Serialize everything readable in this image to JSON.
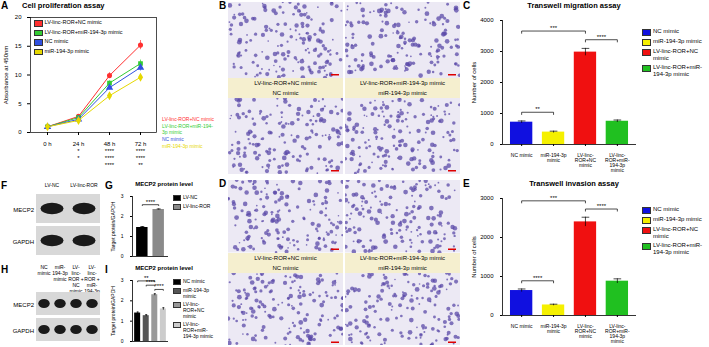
{
  "chart_data": [
    {
      "panel": "A",
      "type": "line",
      "title": "Cell proliferation assay",
      "x": [
        "0 h",
        "24 h",
        "48 h",
        "72 h"
      ],
      "ylabel": "Absorbance at 450nm",
      "ylim": [
        0,
        20
      ],
      "yticks": [
        0,
        5,
        10,
        15,
        20
      ],
      "legend": "top-left",
      "series": [
        {
          "name": "LV-linc-ROR+NC mimic",
          "color": "#ff3030",
          "marker": "circle",
          "line_style": "solid",
          "values": [
            1.0,
            2.8,
            9.9,
            15.2
          ],
          "errors": [
            0.1,
            0.2,
            0.5,
            0.8
          ]
        },
        {
          "name": "LV-linc-ROR+miR-194-3p mimic",
          "color": "#33cc33",
          "marker": "square",
          "line_style": "solid",
          "values": [
            1.0,
            2.6,
            8.6,
            12.0
          ],
          "errors": [
            0.1,
            0.2,
            0.4,
            0.6
          ]
        },
        {
          "name": "NC mimic",
          "color": "#3050e0",
          "marker": "triangle",
          "line_style": "solid",
          "values": [
            1.0,
            2.3,
            7.8,
            11.3
          ],
          "errors": [
            0.1,
            0.2,
            0.4,
            0.6
          ]
        },
        {
          "name": "miR-194-3p mimic",
          "color": "#e6d800",
          "marker": "diamond",
          "line_style": "solid",
          "values": [
            1.0,
            2.1,
            6.4,
            9.6
          ],
          "errors": [
            0.1,
            0.2,
            0.4,
            0.5
          ]
        }
      ],
      "significance": [
        [
          null,
          "*",
          "****",
          "****"
        ],
        [
          null,
          "*",
          "****",
          "****"
        ],
        [
          null,
          null,
          "****",
          "**"
        ]
      ]
    },
    {
      "panel": "C",
      "type": "bar",
      "title": "Transwell migration assay",
      "categories": [
        "NC mimic",
        "miR-194-3p mimic",
        "LV-linc-ROR+NC mimic",
        "LV-linc-ROR+miR-194-3p mimic"
      ],
      "values": [
        720,
        400,
        2980,
        750
      ],
      "errors": [
        40,
        30,
        120,
        40
      ],
      "colors": [
        "#1010e0",
        "#f5f000",
        "#f01010",
        "#20c020"
      ],
      "ylabel": "Number of cells",
      "ylim": [
        0,
        4000
      ],
      "yticks": [
        0,
        1000,
        2000,
        3000,
        4000
      ],
      "legend": "right",
      "comparisons": [
        {
          "from": 0,
          "to": 1,
          "text": "**"
        },
        {
          "from": 2,
          "to": 3,
          "text": "****"
        },
        {
          "from": 0,
          "to": 2,
          "text": "***"
        }
      ]
    },
    {
      "panel": "E",
      "type": "bar",
      "title": "Transwell invasion assay",
      "categories": [
        "NC mimic",
        "miR-194-3p mimic",
        "LV-linc-ROR+NC mimic",
        "LV-linc-ROR+miR-194-3p mimic"
      ],
      "values": [
        640,
        270,
        2400,
        880
      ],
      "errors": [
        40,
        20,
        120,
        60
      ],
      "colors": [
        "#1010e0",
        "#f5f000",
        "#f01010",
        "#20c020"
      ],
      "ylabel": "Number of cells",
      "ylim": [
        0,
        3000
      ],
      "yticks": [
        0,
        1000,
        2000,
        3000
      ],
      "legend": "right",
      "comparisons": [
        {
          "from": 0,
          "to": 1,
          "text": "****"
        },
        {
          "from": 2,
          "to": 3,
          "text": "****"
        },
        {
          "from": 0,
          "to": 2,
          "text": "***"
        }
      ]
    },
    {
      "panel": "G",
      "type": "bar",
      "title": "MECP2 protein level",
      "categories": [
        "LV-NC",
        "LV-linc-ROR"
      ],
      "values": [
        1.45,
        2.35
      ],
      "errors": [
        0.05,
        0.03
      ],
      "colors": [
        "#000000",
        "#8a8a8a"
      ],
      "ylabel": "Target protein/GAPDH",
      "ylim": [
        0,
        3
      ],
      "yticks": [
        0,
        1,
        2,
        3
      ],
      "legend": "right",
      "tick_labels": "y",
      "comparisons": [
        {
          "from": 0,
          "to": 1,
          "text": "****"
        }
      ]
    },
    {
      "panel": "I",
      "type": "bar",
      "title": "MECP2 protein level",
      "categories": [
        "NC mimic",
        "miR-194-3p mimic",
        "LV-linc-ROR+NC mimic",
        "LV-linc-ROR+miR-194-3p mimic"
      ],
      "values": [
        1.4,
        1.27,
        2.3,
        1.6
      ],
      "errors": [
        0.05,
        0.05,
        0.05,
        0.06
      ],
      "colors": [
        "#000000",
        "#555555",
        "#999999",
        "#cccccc"
      ],
      "ylabel": "Target protein/GAPDH",
      "ylim": [
        0,
        3
      ],
      "yticks": [
        0,
        1,
        2,
        3
      ],
      "legend": "right",
      "tick_labels": "y",
      "comparisons": [
        {
          "from": 2,
          "to": 3,
          "text": "****"
        },
        {
          "from": 1,
          "to": 2,
          "text": "****"
        },
        {
          "from": 0,
          "to": 2,
          "text": "**"
        }
      ]
    }
  ],
  "images": [
    {
      "panel": "B",
      "labels": [
        "LV-linc-ROR+NC mimic",
        "LV-linc-ROR+miR-194-3p mimic",
        "NC mimic",
        "miR-194-3p mimic"
      ]
    },
    {
      "panel": "D",
      "labels": [
        "LV-linc-ROR+NC mimic",
        "LV-linc-ROR+miR-194-3p mimic",
        "NC mimic",
        "miR-194-3p mimic"
      ]
    }
  ],
  "blots": [
    {
      "panel": "F",
      "rows": [
        "MECP2",
        "GAPDH"
      ],
      "lanes": [
        "LV-NC",
        "LV-linc-ROR"
      ]
    },
    {
      "panel": "H",
      "rows": [
        "MECP2",
        "GAPDH"
      ],
      "lanes": [
        "NC mimic",
        "miR-194-3p mimic",
        "LV-linc-ROR + NC mimic",
        "LV-linc-ROR + miR-194-3p mimic"
      ]
    }
  ]
}
